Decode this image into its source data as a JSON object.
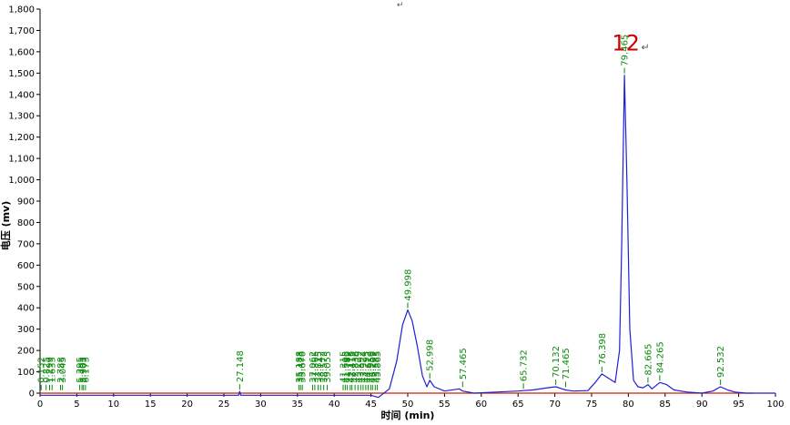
{
  "chart_data": {
    "type": "line",
    "xlabel": "时间 (min)",
    "ylabel": "电压 (mv)",
    "xlim": [
      0,
      100
    ],
    "ylim": [
      0,
      1800
    ],
    "x_ticks": [
      0,
      5,
      10,
      15,
      20,
      25,
      30,
      35,
      40,
      45,
      50,
      55,
      60,
      65,
      70,
      75,
      80,
      85,
      90,
      95,
      100
    ],
    "y_ticks": [
      0,
      100,
      200,
      300,
      400,
      500,
      600,
      700,
      800,
      900,
      1000,
      1100,
      1200,
      1300,
      1400,
      1500,
      1600,
      1700,
      1800
    ],
    "y_tick_labels": [
      "0",
      "100",
      "200",
      "300",
      "400",
      "500",
      "600",
      "700",
      "800",
      "900",
      "1,000",
      "1,100",
      "1,200",
      "1,300",
      "1,400",
      "1,500",
      "1,600",
      "1,700",
      "1,800"
    ],
    "grid": false,
    "colors": {
      "trace": "#1f1fd6",
      "baseline": "#cc2200",
      "peak_label": "#0a8a0a",
      "annotation": "#cc0000"
    },
    "series": [
      {
        "x": [
          0,
          5,
          10,
          20,
          27,
          27.15,
          27.3,
          35,
          45,
          46,
          47.5,
          48.5,
          49.3,
          50.0,
          50.6,
          51.3,
          52.0,
          52.6,
          53.0,
          53.6,
          55,
          57,
          57.47,
          59,
          62,
          65,
          65.73,
          67,
          69,
          70.13,
          71.0,
          71.47,
          72.5,
          74.5,
          75.5,
          76.4,
          77.3,
          78.2,
          78.8,
          79.1,
          79.47,
          79.8,
          80.2,
          80.7,
          81.3,
          82.0,
          82.67,
          83.2,
          84.27,
          85.2,
          86.2,
          88,
          90,
          91.5,
          92.53,
          93.5,
          94.5,
          96,
          98,
          100
        ],
        "y": [
          -10,
          -10,
          -10,
          -10,
          -10,
          8,
          -10,
          -10,
          -10,
          -20,
          20,
          150,
          320,
          390,
          340,
          220,
          80,
          30,
          60,
          30,
          10,
          20,
          10,
          0,
          5,
          10,
          12,
          15,
          25,
          30,
          20,
          15,
          10,
          12,
          50,
          90,
          70,
          50,
          200,
          700,
          1490,
          1000,
          300,
          60,
          30,
          25,
          40,
          20,
          50,
          40,
          15,
          5,
          0,
          10,
          30,
          15,
          5,
          0,
          0,
          0
        ]
      }
    ],
    "peak_labels": [
      "0.152",
      "0.825",
      "1.299",
      "1.635",
      "2.788",
      "3.045",
      "5.395",
      "5.705",
      "5.903",
      "6.173",
      "27.148",
      "35.188",
      "35.423",
      "35.670",
      "37.062",
      "37.365",
      "37.815",
      "38.142",
      "38.573",
      "39.055",
      "41.215",
      "41.505",
      "41.789",
      "42.176",
      "42.415",
      "42.836",
      "43.229",
      "43.592",
      "43.924",
      "44.295",
      "44.613",
      "44.959",
      "45.209",
      "45.583",
      "45.865",
      "49.998",
      "52.998",
      "57.465",
      "65.732",
      "70.132",
      "71.465",
      "76.398",
      "79.465",
      "82.665",
      "84.265",
      "92.532"
    ],
    "peak_label_x": [
      0.152,
      0.825,
      1.299,
      1.635,
      2.788,
      3.045,
      5.395,
      5.705,
      5.903,
      6.173,
      27.148,
      35.188,
      35.423,
      35.67,
      37.062,
      37.365,
      37.815,
      38.142,
      38.573,
      39.055,
      41.215,
      41.505,
      41.789,
      42.176,
      42.415,
      42.836,
      43.229,
      43.592,
      43.924,
      44.295,
      44.613,
      44.959,
      45.209,
      45.583,
      45.865,
      49.998,
      52.998,
      57.465,
      65.732,
      70.132,
      71.465,
      76.398,
      79.465,
      82.665,
      84.265,
      92.532
    ],
    "peak_label_y": [
      5,
      5,
      5,
      5,
      5,
      5,
      5,
      5,
      5,
      5,
      8,
      5,
      5,
      5,
      5,
      5,
      5,
      5,
      5,
      5,
      5,
      5,
      5,
      5,
      5,
      5,
      5,
      5,
      5,
      5,
      5,
      5,
      5,
      5,
      5,
      390,
      60,
      20,
      12,
      30,
      20,
      90,
      1490,
      40,
      50,
      30
    ],
    "annotation": {
      "text": "12",
      "x": 79.5,
      "y": 1640,
      "mark": "↵"
    },
    "top_mark": {
      "text": "↵",
      "x": 48.5,
      "y": 1810
    }
  }
}
